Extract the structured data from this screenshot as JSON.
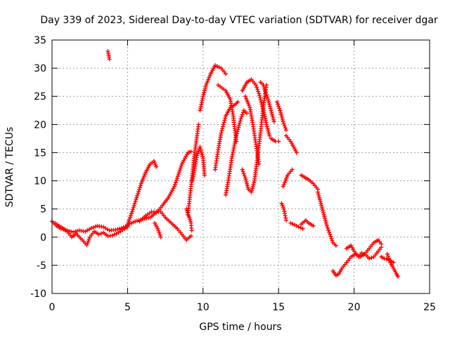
{
  "chart_data": {
    "type": "scatter",
    "title": "Day 339 of 2023, Sidereal Day-to-day VTEC variation (SDTVAR) for receiver dgar",
    "xlabel": "GPS time / hours",
    "ylabel": "SDTVAR / TECUs",
    "xlim": [
      0,
      25
    ],
    "ylim": [
      -10,
      35
    ],
    "xticks": [
      0,
      5,
      10,
      15,
      20,
      25
    ],
    "yticks": [
      -10,
      -5,
      0,
      5,
      10,
      15,
      20,
      25,
      30,
      35
    ],
    "grid": true,
    "marker": "+",
    "series": [
      {
        "name": "SDTVAR",
        "color": "#ff0000",
        "segments": [
          [
            [
              0.0,
              2.8
            ],
            [
              0.3,
              2.0
            ],
            [
              0.6,
              1.5
            ],
            [
              1.0,
              1.2
            ],
            [
              1.4,
              0.9
            ],
            [
              1.8,
              1.2
            ],
            [
              2.2,
              1.0
            ],
            [
              2.6,
              1.6
            ],
            [
              3.0,
              2.0
            ],
            [
              3.4,
              1.8
            ],
            [
              3.8,
              1.2
            ],
            [
              4.2,
              1.3
            ],
            [
              4.6,
              1.6
            ],
            [
              5.0,
              2.0
            ]
          ],
          [
            [
              0.2,
              2.5
            ],
            [
              0.6,
              1.8
            ],
            [
              1.0,
              1.0
            ],
            [
              1.3,
              0.0
            ],
            [
              1.6,
              0.6
            ],
            [
              2.0,
              -0.5
            ],
            [
              2.3,
              -1.4
            ],
            [
              2.5,
              0.0
            ],
            [
              2.8,
              1.0
            ],
            [
              3.1,
              0.5
            ],
            [
              3.4,
              0.8
            ],
            [
              3.7,
              0.2
            ],
            [
              4.0,
              0.3
            ],
            [
              4.4,
              0.8
            ],
            [
              4.8,
              1.5
            ],
            [
              5.0,
              1.8
            ]
          ],
          [
            [
              3.7,
              33.0
            ],
            [
              3.75,
              32.3
            ],
            [
              3.8,
              31.6
            ]
          ],
          [
            [
              5.0,
              2.2
            ],
            [
              5.3,
              4.5
            ],
            [
              5.6,
              7.0
            ],
            [
              5.9,
              9.5
            ],
            [
              6.2,
              11.5
            ],
            [
              6.5,
              13.0
            ],
            [
              6.75,
              13.5
            ],
            [
              6.9,
              12.5
            ]
          ],
          [
            [
              5.0,
              2.2
            ],
            [
              5.5,
              2.8
            ],
            [
              6.0,
              3.2
            ],
            [
              6.5,
              3.5
            ],
            [
              7.0,
              4.6
            ],
            [
              7.3,
              5.6
            ],
            [
              7.7,
              7.0
            ],
            [
              8.1,
              9.0
            ],
            [
              8.6,
              13.0
            ],
            [
              9.0,
              15.0
            ],
            [
              9.2,
              15.2
            ]
          ],
          [
            [
              5.8,
              2.8
            ],
            [
              6.2,
              3.8
            ],
            [
              6.6,
              4.5
            ],
            [
              6.9,
              4.5
            ],
            [
              7.2,
              4.5
            ],
            [
              7.5,
              3.5
            ],
            [
              7.9,
              2.5
            ],
            [
              8.3,
              1.5
            ],
            [
              8.6,
              0.5
            ],
            [
              8.9,
              -0.5
            ],
            [
              9.2,
              0.2
            ]
          ],
          [
            [
              6.8,
              2.5
            ],
            [
              7.0,
              1.5
            ],
            [
              7.2,
              0.0
            ]
          ],
          [
            [
              9.0,
              4.0
            ],
            [
              9.2,
              9.0
            ],
            [
              9.4,
              14.0
            ],
            [
              9.6,
              18.0
            ],
            [
              9.7,
              20.0
            ]
          ],
          [
            [
              8.9,
              5.0
            ],
            [
              9.0,
              4.0
            ],
            [
              9.1,
              3.5
            ],
            [
              9.2,
              2.5
            ],
            [
              9.25,
              1.2
            ]
          ],
          [
            [
              9.3,
              10.0
            ],
            [
              9.6,
              14.5
            ],
            [
              9.8,
              16.0
            ],
            [
              10.0,
              14.0
            ],
            [
              10.1,
              11.0
            ]
          ],
          [
            [
              9.8,
              22.5
            ],
            [
              10.0,
              25.0
            ],
            [
              10.2,
              27.0
            ],
            [
              10.5,
              29.0
            ],
            [
              10.8,
              30.5
            ],
            [
              11.2,
              30.0
            ],
            [
              11.5,
              29.0
            ]
          ],
          [
            [
              10.8,
              12.0
            ],
            [
              11.0,
              15.5
            ],
            [
              11.2,
              18.5
            ],
            [
              11.5,
              21.5
            ],
            [
              11.8,
              23.0
            ],
            [
              12.1,
              23.5
            ],
            [
              12.3,
              24.0
            ]
          ],
          [
            [
              11.0,
              27.0
            ],
            [
              11.5,
              26.0
            ],
            [
              11.8,
              24.5
            ],
            [
              12.0,
              21.5
            ],
            [
              12.2,
              17.0
            ]
          ],
          [
            [
              11.5,
              7.5
            ],
            [
              11.7,
              10.5
            ],
            [
              11.9,
              14.0
            ],
            [
              12.2,
              18.0
            ],
            [
              12.5,
              21.0
            ],
            [
              12.7,
              22.5
            ],
            [
              12.9,
              22.0
            ]
          ],
          [
            [
              12.6,
              26.0
            ],
            [
              12.9,
              27.5
            ],
            [
              13.2,
              28.0
            ],
            [
              13.5,
              27.0
            ],
            [
              13.7,
              25.5
            ],
            [
              14.0,
              22.5
            ],
            [
              14.2,
              20.0
            ],
            [
              14.4,
              18.0
            ]
          ],
          [
            [
              12.8,
              25.0
            ],
            [
              13.1,
              23.0
            ],
            [
              13.3,
              20.0
            ],
            [
              13.5,
              16.5
            ],
            [
              13.7,
              13.0
            ]
          ],
          [
            [
              12.6,
              12.0
            ],
            [
              12.8,
              10.5
            ],
            [
              13.0,
              8.5
            ],
            [
              13.2,
              8.0
            ],
            [
              13.4,
              10.0
            ],
            [
              13.6,
              14.0
            ],
            [
              13.8,
              18.5
            ],
            [
              14.0,
              23.5
            ],
            [
              14.2,
              27.0
            ]
          ],
          [
            [
              13.8,
              27.5
            ],
            [
              14.0,
              27.0
            ],
            [
              14.1,
              26.0
            ],
            [
              14.3,
              24.5
            ],
            [
              14.5,
              22.5
            ],
            [
              14.7,
              20.5
            ]
          ],
          [
            [
              14.5,
              17.5
            ],
            [
              14.8,
              17.0
            ],
            [
              15.0,
              17.0
            ]
          ],
          [
            [
              14.9,
              24.0
            ],
            [
              15.1,
              22.5
            ],
            [
              15.3,
              20.5
            ],
            [
              15.5,
              19.0
            ]
          ],
          [
            [
              15.3,
              9.0
            ],
            [
              15.6,
              11.0
            ],
            [
              15.9,
              12.0
            ]
          ],
          [
            [
              15.2,
              6.0
            ],
            [
              15.35,
              5.0
            ],
            [
              15.5,
              3.0
            ]
          ],
          [
            [
              15.5,
              18.0
            ],
            [
              15.8,
              17.0
            ],
            [
              16.0,
              16.0
            ],
            [
              16.2,
              15.0
            ]
          ],
          [
            [
              16.5,
              11.0
            ],
            [
              16.8,
              10.5
            ],
            [
              17.0,
              10.2
            ],
            [
              17.3,
              9.5
            ],
            [
              17.6,
              8.5
            ]
          ],
          [
            [
              15.8,
              2.5
            ],
            [
              16.2,
              2.0
            ],
            [
              16.6,
              1.5
            ]
          ],
          [
            [
              16.5,
              2.3
            ],
            [
              16.8,
              3.0
            ],
            [
              17.0,
              2.5
            ],
            [
              17.3,
              2.0
            ]
          ],
          [
            [
              17.6,
              8.0
            ],
            [
              17.8,
              6.0
            ],
            [
              18.0,
              4.0
            ],
            [
              18.2,
              2.0
            ],
            [
              18.4,
              0.5
            ],
            [
              18.6,
              -1.0
            ],
            [
              18.8,
              -1.5
            ]
          ],
          [
            [
              18.6,
              -6.0
            ],
            [
              18.8,
              -6.8
            ],
            [
              19.0,
              -6.5
            ],
            [
              19.2,
              -5.5
            ],
            [
              19.5,
              -4.5
            ],
            [
              19.8,
              -3.5
            ],
            [
              20.1,
              -3.0
            ],
            [
              20.4,
              -3.5
            ],
            [
              20.7,
              -3.0
            ],
            [
              21.0,
              -2.0
            ],
            [
              21.3,
              -1.0
            ],
            [
              21.6,
              -0.5
            ],
            [
              21.8,
              -1.2
            ]
          ],
          [
            [
              19.5,
              -2.0
            ],
            [
              19.8,
              -1.5
            ],
            [
              20.0,
              -2.5
            ],
            [
              20.3,
              -3.5
            ],
            [
              20.5,
              -2.8
            ],
            [
              20.8,
              -3.2
            ],
            [
              21.0,
              -3.8
            ],
            [
              21.3,
              -3.5
            ],
            [
              21.6,
              -2.5
            ],
            [
              21.8,
              -1.8
            ]
          ],
          [
            [
              21.8,
              -3.5
            ],
            [
              22.0,
              -3.8
            ],
            [
              22.3,
              -4.0
            ],
            [
              22.6,
              -4.5
            ]
          ],
          [
            [
              22.2,
              -3.0
            ],
            [
              22.4,
              -4.5
            ],
            [
              22.6,
              -5.5
            ],
            [
              22.8,
              -6.5
            ],
            [
              22.9,
              -7.0
            ]
          ]
        ]
      }
    ]
  }
}
